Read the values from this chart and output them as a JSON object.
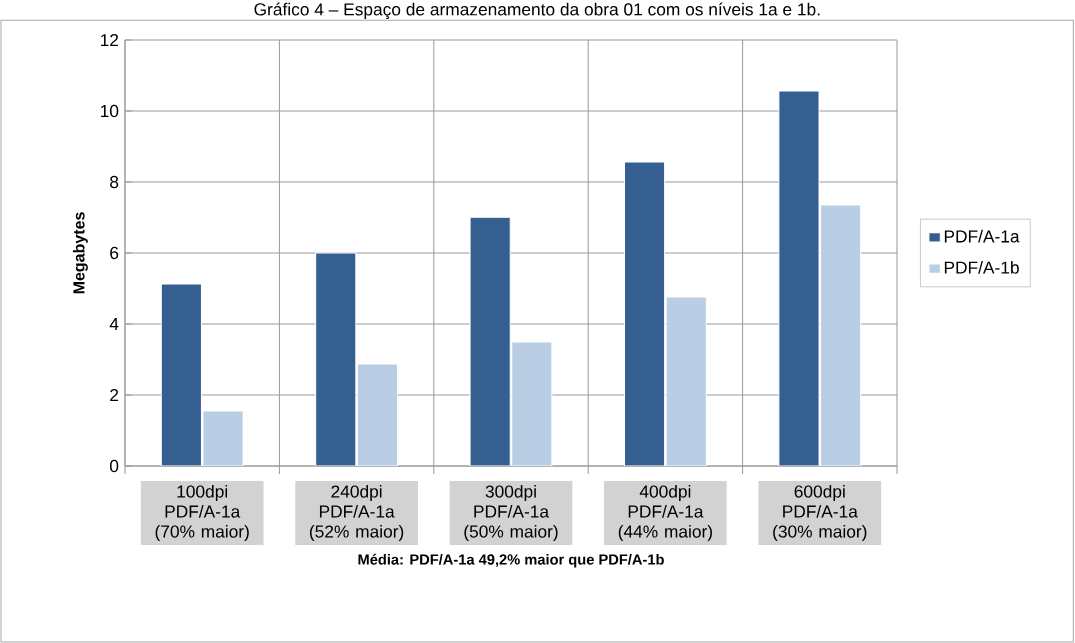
{
  "chart_data": {
    "type": "bar",
    "title": "Gráfico 4 – Espaço de armazenamento da obra 01 com os níveis 1a e 1b.",
    "xlabel": "Média: PDF/A-1a 49,2% maior que PDF/A-1b",
    "ylabel": "Megabytes",
    "categories": [
      "100dpi PDF/A-1a (70% maior)",
      "240dpi PDF/A-1a (52% maior)",
      "300dpi PDF/A-1a (50% maior)",
      "400dpi PDF/A-1a (44% maior)",
      "600dpi PDF/A-1a (30% maior)"
    ],
    "series": [
      {
        "name": "PDF/A-1a",
        "color": "#365f91",
        "values": [
          5.13,
          6.0,
          7.01,
          8.56,
          10.56
        ]
      },
      {
        "name": "PDF/A-1b",
        "color": "#b9cde5",
        "values": [
          1.55,
          2.87,
          3.49,
          4.76,
          7.35
        ]
      }
    ],
    "ylim": [
      0,
      12
    ],
    "yticks": [
      0,
      2,
      4,
      6,
      8,
      10,
      12
    ],
    "grid": true,
    "legend": "right"
  }
}
